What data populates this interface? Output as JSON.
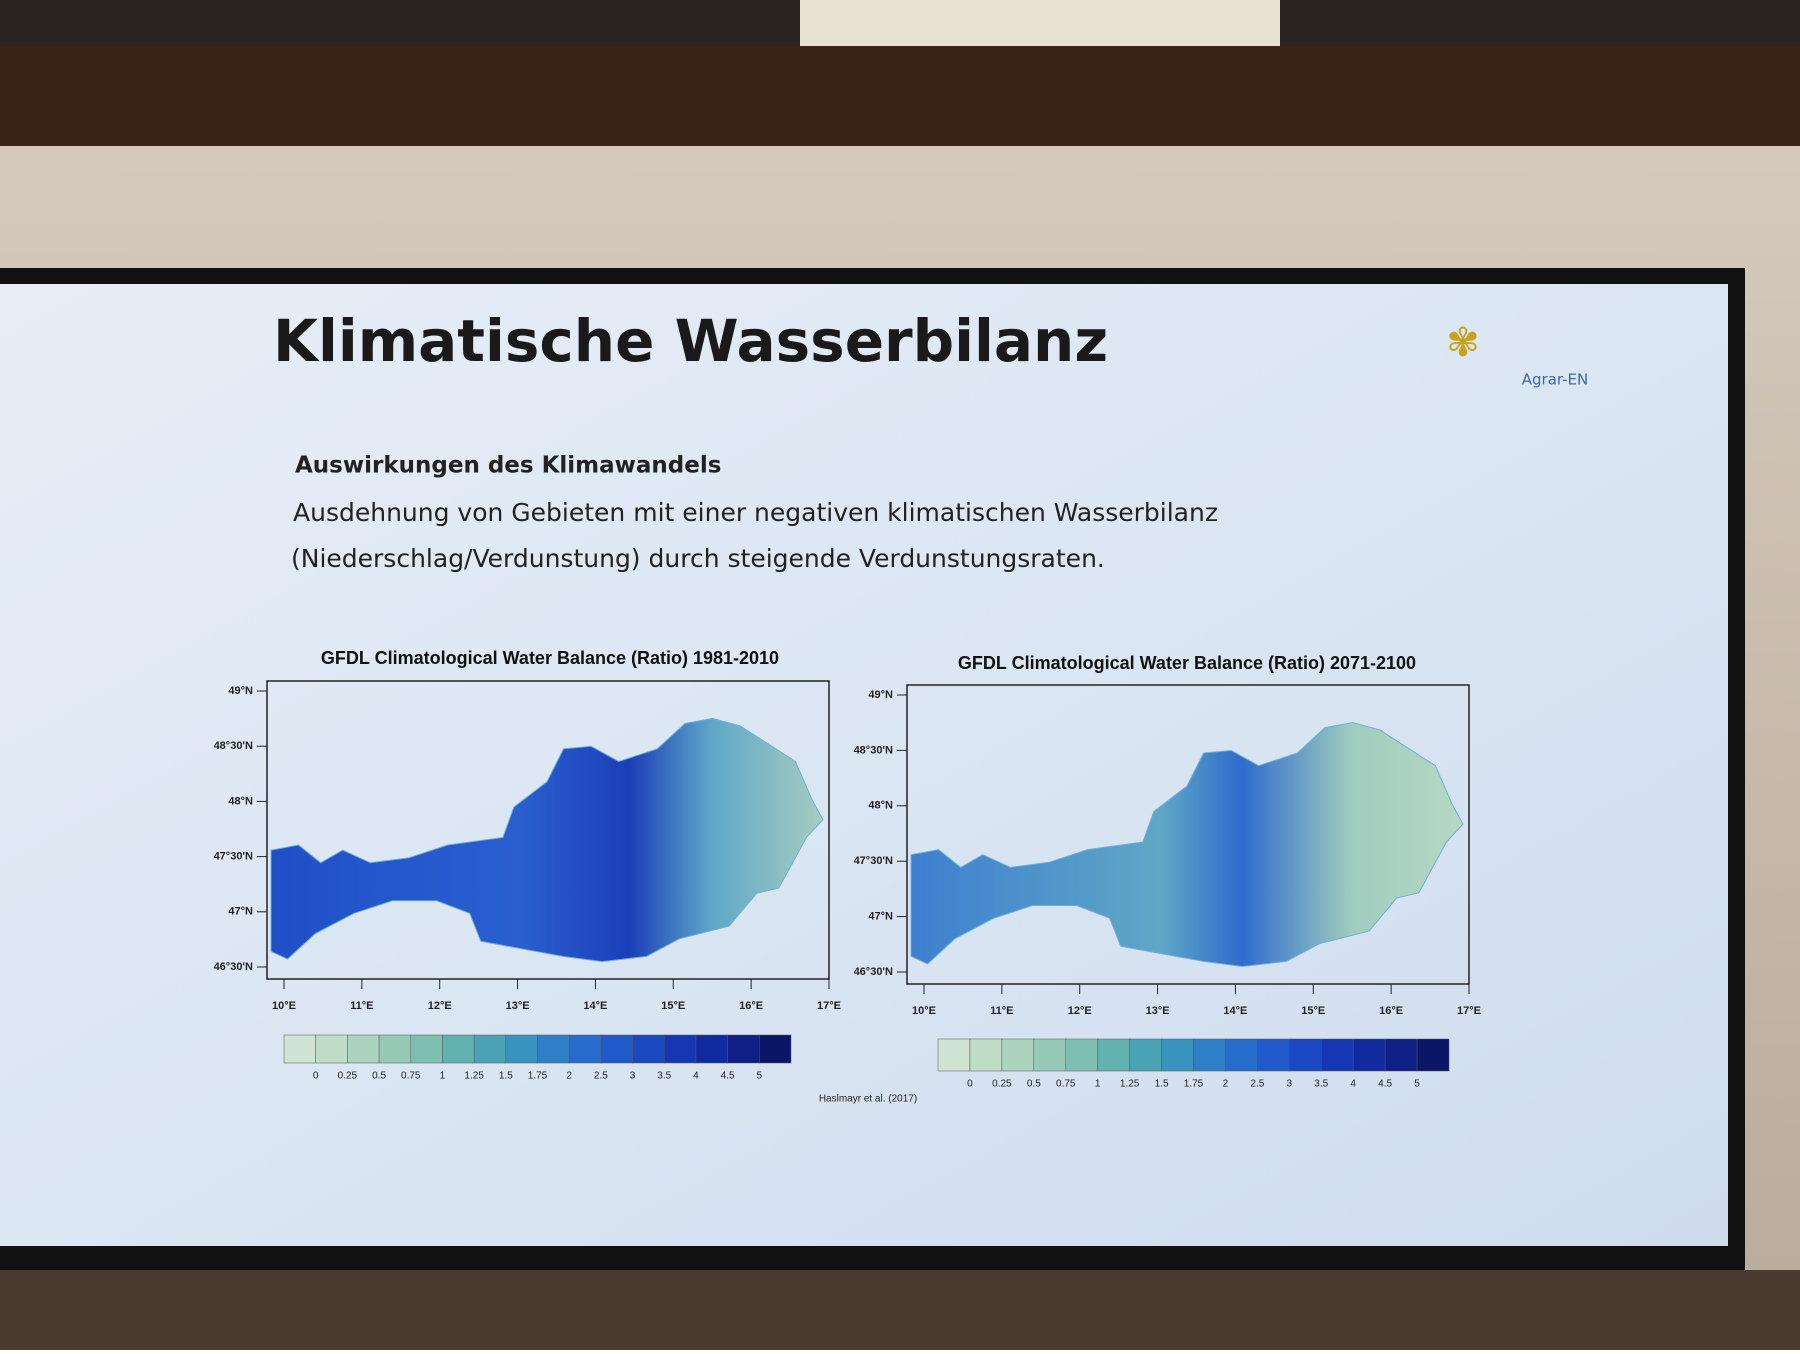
{
  "slide": {
    "title": "Klimatische Wasserbilanz",
    "logo": "Agrar-EN",
    "subheading": "Auswirkungen des Klimawandels",
    "body": [
      "Ausdehnung von Gebieten mit einer negativen klimatischen Wasserbilanz",
      "(Niederschlag/Verdunstung) durch steigende Verdunstungsraten."
    ],
    "maps": [
      {
        "title": "GFDL Climatological Water Balance (Ratio) 1981-2010"
      },
      {
        "title": "GFDL Climatological Water Balance (Ratio) 2071-2100"
      }
    ],
    "lat_ticks": [
      "49°N",
      "48°30'N",
      "48°N",
      "47°30'N",
      "47°N",
      "46°30'N"
    ],
    "lon_ticks": [
      "10°E",
      "11°E",
      "12°E",
      "13°E",
      "14°E",
      "15°E",
      "16°E",
      "17°E"
    ],
    "colorbar_labels": [
      "0",
      "0.25",
      "0.5",
      "0.75",
      "1",
      "1.25",
      "1.5",
      "1.75",
      "2",
      "2.5",
      "3",
      "3.5",
      "4",
      "4.5",
      "5"
    ],
    "citation": "Haslmayr et al. (2017)"
  }
}
